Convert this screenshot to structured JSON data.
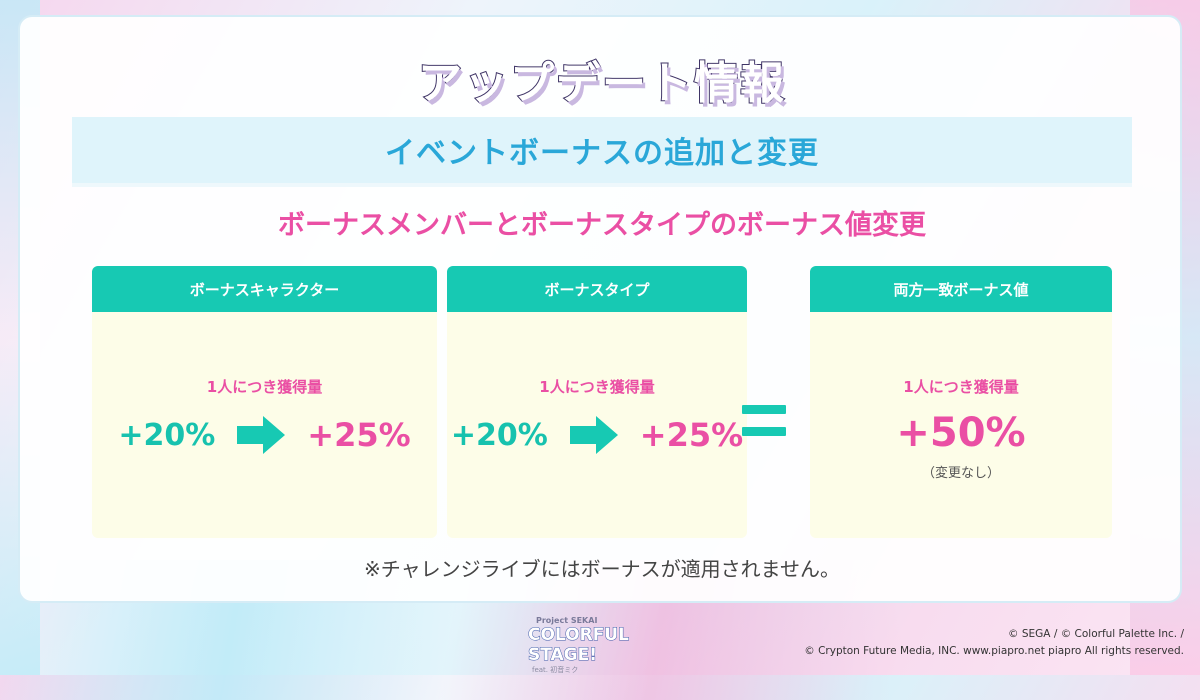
{
  "title": "アップデート情報",
  "subtitle": "イベントボーナスの追加と変更",
  "heading": "ボーナスメンバーとボーナスタイプのボーナス値変更",
  "cards": [
    {
      "header": "ボーナスキャラクター",
      "label": "1人につき獲得量",
      "old_value": "+20%",
      "new_value": "+25%"
    },
    {
      "header": "ボーナスタイプ",
      "label": "1人につき獲得量",
      "old_value": "+20%",
      "new_value": "+25%"
    },
    {
      "header": "両方一致ボーナス値",
      "label": "1人につき獲得量",
      "value": "+50%",
      "note": "（変更なし）"
    }
  ],
  "footnote": "※チャレンジライブにはボーナスが適用されません。",
  "logo": {
    "line1": "Project SEKAI",
    "line2": "COLORFUL STAGE!",
    "line3": "feat. 初音ミク"
  },
  "copyright": {
    "line1": "© SEGA / © Colorful Palette Inc. /",
    "line2": "© Crypton Future Media, INC. www.piapro.net piapro All rights reserved."
  },
  "icons": {
    "arrow": "right-arrow-icon",
    "equals": "equals-icon"
  },
  "colors": {
    "teal": "#17c9b3",
    "pink": "#ea4fa4",
    "blue": "#2aa7d8",
    "card_bg": "#fdfde8"
  }
}
